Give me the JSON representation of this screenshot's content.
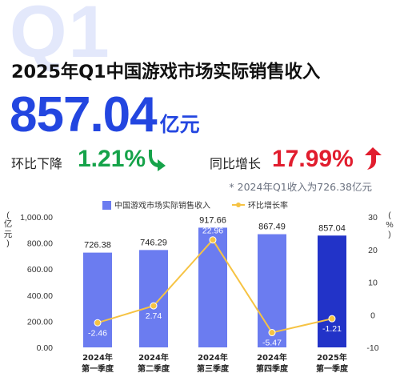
{
  "background_text": "Q1",
  "title": "2025年Q1中国游戏市场实际销售收入",
  "headline": {
    "value": "857.04",
    "unit": "亿元"
  },
  "qoq": {
    "label": "环比下降",
    "value": "1.21%",
    "direction": "down",
    "color": "#16a34a",
    "icon": "arrow-down-icon"
  },
  "yoy": {
    "label": "同比增长",
    "value": "17.99%",
    "direction": "up",
    "color": "#e11d2e",
    "icon": "arrow-up-icon"
  },
  "note": "* 2024年Q1收入为726.38亿元",
  "colors": {
    "bar": "#6b7cf0",
    "bar_highlight": "#2233c8",
    "line": "#f6c343",
    "accent": "#2346e0"
  },
  "chart_data": {
    "type": "bar+line",
    "categories": [
      [
        "2024年",
        "第一季度"
      ],
      [
        "2024年",
        "第二季度"
      ],
      [
        "2024年",
        "第三季度"
      ],
      [
        "2024年",
        "第四季度"
      ],
      [
        "2025年",
        "第一季度"
      ]
    ],
    "series": [
      {
        "name": "中国游戏市场实际销售收入",
        "type": "bar",
        "axis": "left",
        "values": [
          726.38,
          746.29,
          917.66,
          867.49,
          857.04
        ]
      },
      {
        "name": "环比增长率",
        "type": "line",
        "axis": "right",
        "values": [
          -2.46,
          2.74,
          22.96,
          -5.47,
          -1.21
        ]
      }
    ],
    "bar_labels": [
      "726.38",
      "746.29",
      "917.66",
      "867.49",
      "857.04"
    ],
    "line_labels": [
      "-2.46",
      "2.74",
      "22.96",
      "-5.47",
      "-1.21"
    ],
    "left_axis": {
      "label": "亿元",
      "range": [
        0,
        1000
      ],
      "ticks": [
        "1,000.00",
        "800.00",
        "600.00",
        "400.00",
        "200.00",
        "0.00"
      ]
    },
    "right_axis": {
      "label": "%",
      "range": [
        -10,
        30
      ],
      "ticks": [
        "30",
        "20",
        "10",
        "0",
        "-10"
      ]
    },
    "legend_position": "top-center",
    "highlight_index": 4
  }
}
